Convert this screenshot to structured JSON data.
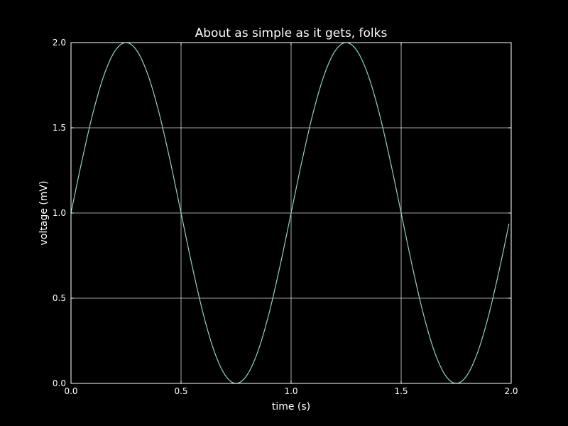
{
  "chart_data": {
    "type": "line",
    "title": "About as simple as it gets, folks",
    "xlabel": "time (s)",
    "ylabel": "voltage (mV)",
    "xlim": [
      0.0,
      2.0
    ],
    "ylim": [
      0.0,
      2.0
    ],
    "xticks": [
      "0.0",
      "0.5",
      "1.0",
      "1.5",
      "2.0"
    ],
    "yticks": [
      "0.0",
      "0.5",
      "1.0",
      "1.5",
      "2.0"
    ],
    "grid": true,
    "series": [
      {
        "x": [
          0.0,
          0.05,
          0.1,
          0.15,
          0.2,
          0.25,
          0.3,
          0.35,
          0.4,
          0.45,
          0.5,
          0.55,
          0.6,
          0.65,
          0.7,
          0.75,
          0.8,
          0.85,
          0.9,
          0.95,
          1.0,
          1.05,
          1.1,
          1.15,
          1.2,
          1.25,
          1.3,
          1.35,
          1.4,
          1.45,
          1.5,
          1.55,
          1.6,
          1.65,
          1.7,
          1.75,
          1.8,
          1.85,
          1.9,
          1.95,
          1.99
        ],
        "y": [
          1.0,
          1.309,
          1.588,
          1.809,
          1.951,
          2.0,
          1.951,
          1.809,
          1.588,
          1.309,
          1.0,
          0.691,
          0.412,
          0.191,
          0.049,
          0.0,
          0.049,
          0.191,
          0.412,
          0.691,
          1.0,
          1.309,
          1.588,
          1.809,
          1.951,
          2.0,
          1.951,
          1.809,
          1.588,
          1.309,
          1.0,
          0.691,
          0.412,
          0.191,
          0.049,
          0.0,
          0.049,
          0.191,
          0.412,
          0.691,
          0.937
        ]
      }
    ]
  },
  "colors": {
    "background": "#000000",
    "axes": "#ffffff",
    "grid": "#ffffff",
    "text": "#ffffff",
    "line": "#8dd3c7"
  }
}
